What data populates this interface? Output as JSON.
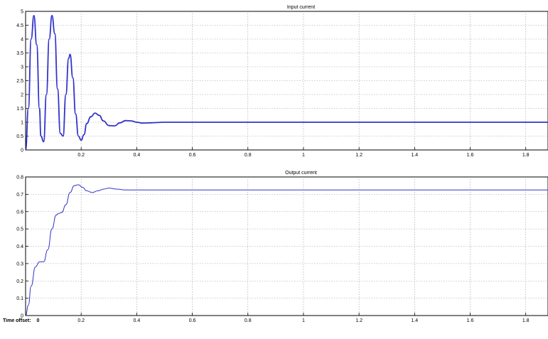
{
  "chart_data": [
    {
      "type": "line",
      "title": "Input current",
      "xlabel": "",
      "ylabel": "",
      "xlim": [
        0,
        1.88
      ],
      "ylim": [
        0,
        5
      ],
      "xticks": [
        0.2,
        0.4,
        0.6,
        0.8,
        1,
        1.2,
        1.4,
        1.6,
        1.8
      ],
      "xtick_labels": [
        "0.2",
        "0.4",
        "0.6",
        "0.8",
        "1",
        "1.2",
        "1.4",
        "1.6",
        "1.8"
      ],
      "yticks": [
        0,
        0.5,
        1,
        1.5,
        2,
        2.5,
        3,
        3.5,
        4,
        4.5,
        5
      ],
      "ytick_labels": [
        "0",
        "0.5",
        "1",
        "1.5",
        "2",
        "2.5",
        "3",
        "3.5",
        "4",
        "4.5",
        "5"
      ],
      "grid": true,
      "color": "#3333cc",
      "series": [
        {
          "x": [
            0,
            0.01,
            0.02,
            0.03,
            0.04,
            0.05,
            0.055,
            0.065,
            0.075,
            0.085,
            0.095,
            0.105,
            0.115,
            0.125,
            0.135,
            0.145,
            0.155,
            0.16,
            0.17,
            0.18,
            0.19,
            0.2,
            0.21,
            0.22,
            0.235,
            0.25,
            0.265,
            0.28,
            0.3,
            0.32,
            0.34,
            0.36,
            0.38,
            0.4,
            0.42,
            0.45,
            0.5,
            0.55,
            0.6,
            0.7,
            0.8,
            1.0,
            1.2,
            1.4,
            1.6,
            1.88
          ],
          "y": [
            0,
            1.5,
            4.0,
            4.85,
            3.8,
            1.5,
            0.5,
            0.3,
            2.0,
            4.0,
            4.85,
            4.2,
            2.2,
            0.6,
            0.5,
            2.0,
            3.3,
            3.45,
            2.6,
            1.3,
            0.5,
            0.35,
            0.55,
            0.95,
            1.2,
            1.33,
            1.25,
            1.05,
            0.88,
            0.87,
            0.98,
            1.06,
            1.05,
            1.0,
            0.97,
            0.98,
            1.0,
            1.0,
            1.0,
            1.0,
            1.0,
            1.0,
            1.0,
            1.0,
            1.0,
            1.0
          ]
        }
      ]
    },
    {
      "type": "line",
      "title": "Output current",
      "xlabel": "",
      "ylabel": "",
      "xlim": [
        0,
        1.88
      ],
      "ylim": [
        0,
        0.8
      ],
      "xticks": [
        0.2,
        0.4,
        0.6,
        0.8,
        1,
        1.2,
        1.4,
        1.6,
        1.8
      ],
      "xtick_labels": [
        "0.2",
        "0.4",
        "0.6",
        "0.8",
        "1",
        "1.2",
        "1.4",
        "1.6",
        "1.8"
      ],
      "yticks": [
        0,
        0.1,
        0.2,
        0.3,
        0.4,
        0.5,
        0.6,
        0.7,
        0.8
      ],
      "ytick_labels": [
        "0",
        "0.1",
        "0.2",
        "0.3",
        "0.4",
        "0.5",
        "0.6",
        "0.7",
        "0.8"
      ],
      "grid": true,
      "color": "#3333cc",
      "series": [
        {
          "x": [
            0,
            0.01,
            0.02,
            0.035,
            0.05,
            0.065,
            0.08,
            0.095,
            0.11,
            0.12,
            0.13,
            0.145,
            0.16,
            0.175,
            0.19,
            0.205,
            0.22,
            0.24,
            0.26,
            0.28,
            0.3,
            0.33,
            0.36,
            0.4,
            0.5,
            0.6,
            0.8,
            1.0,
            1.2,
            1.4,
            1.6,
            1.88
          ],
          "y": [
            0,
            0.06,
            0.17,
            0.28,
            0.31,
            0.31,
            0.38,
            0.5,
            0.58,
            0.59,
            0.595,
            0.64,
            0.71,
            0.75,
            0.755,
            0.74,
            0.72,
            0.71,
            0.72,
            0.73,
            0.735,
            0.73,
            0.725,
            0.725,
            0.725,
            0.725,
            0.725,
            0.725,
            0.725,
            0.725,
            0.725,
            0.725
          ]
        }
      ]
    }
  ],
  "footer": {
    "label": "Time offset:",
    "value": "0"
  }
}
